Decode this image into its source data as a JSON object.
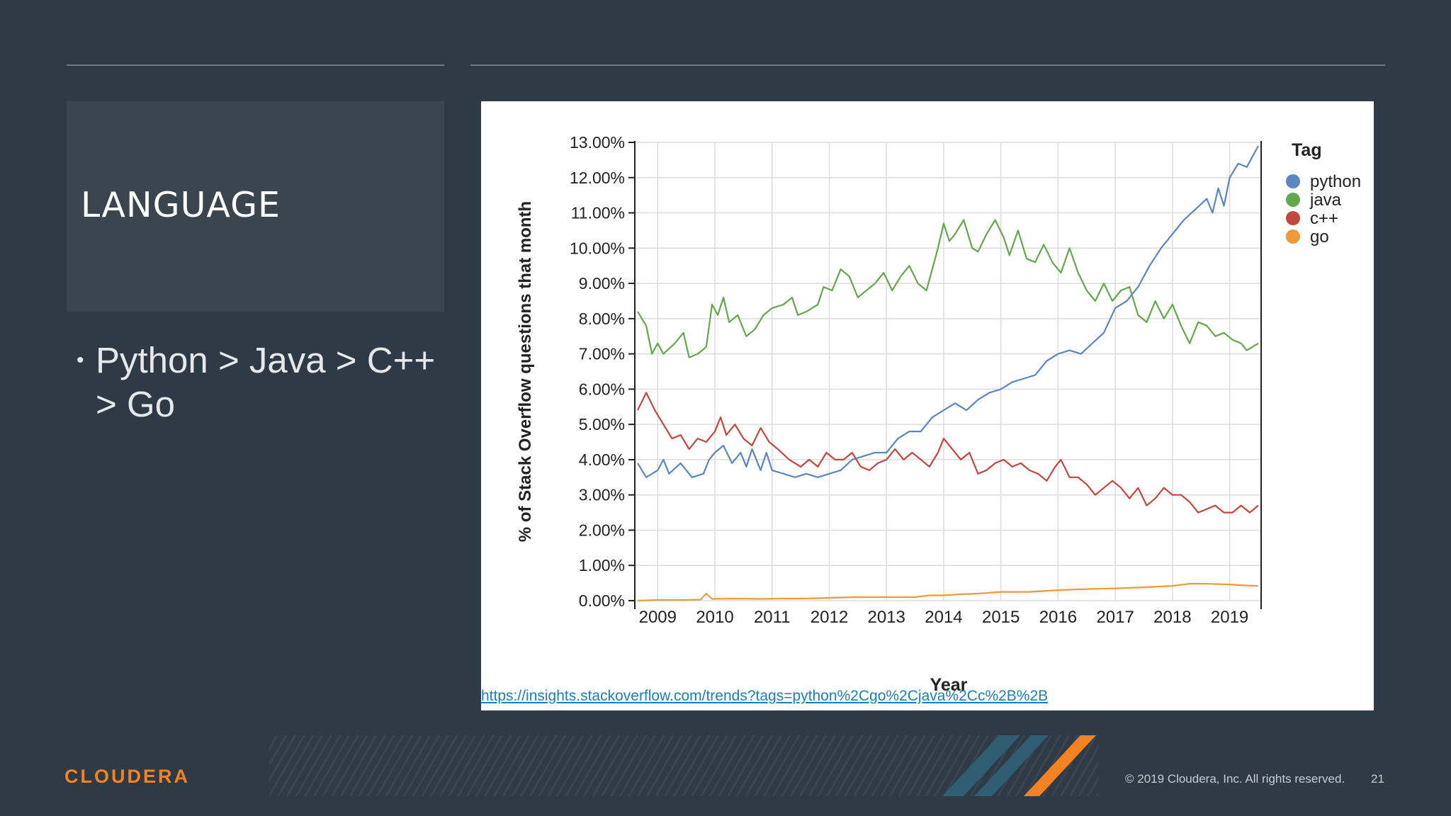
{
  "slide": {
    "title": "LANGUAGE",
    "bullet_symbol": "•",
    "bullet_text": "Python > Java > C++ > Go",
    "source_link": "https://insights.stackoverflow.com/trends?tags=python%2Cgo%2Cjava%2Cc%2B%2B",
    "copyright": "© 2019 Cloudera, Inc. All rights reserved.",
    "page_number": "21",
    "logo_text": "CLOUDERA"
  },
  "colors": {
    "background": "#2e3a45",
    "title_box": "#3a454f",
    "brand_orange": "#f58220",
    "stripe_teal": "#2f5e72",
    "python": "#5a86c4",
    "java": "#63a84a",
    "cpp": "#c4473d",
    "go": "#ec9a3a"
  },
  "chart_data": {
    "type": "line",
    "xlabel": "Year",
    "ylabel": "% of Stack Overflow questions that month",
    "xlim": [
      2008.6,
      2019.55
    ],
    "ylim": [
      0,
      13
    ],
    "x_ticks": [
      2009,
      2010,
      2011,
      2012,
      2013,
      2014,
      2015,
      2016,
      2017,
      2018,
      2019
    ],
    "y_ticks": [
      0,
      1,
      2,
      3,
      4,
      5,
      6,
      7,
      8,
      9,
      10,
      11,
      12,
      13
    ],
    "y_tick_labels": [
      "0.00%",
      "1.00%",
      "2.00%",
      "3.00%",
      "4.00%",
      "5.00%",
      "6.00%",
      "7.00%",
      "8.00%",
      "9.00%",
      "10.00%",
      "11.00%",
      "12.00%",
      "13.00%"
    ],
    "grid": true,
    "legend_title": "Tag",
    "legend_position": "top-right",
    "series": [
      {
        "name": "python",
        "color": "#5a86c4",
        "points": [
          [
            2008.65,
            3.9
          ],
          [
            2008.8,
            3.5
          ],
          [
            2009.0,
            3.7
          ],
          [
            2009.1,
            4.0
          ],
          [
            2009.2,
            3.6
          ],
          [
            2009.4,
            3.9
          ],
          [
            2009.6,
            3.5
          ],
          [
            2009.8,
            3.6
          ],
          [
            2009.9,
            4.0
          ],
          [
            2010.0,
            4.2
          ],
          [
            2010.15,
            4.4
          ],
          [
            2010.3,
            3.9
          ],
          [
            2010.45,
            4.2
          ],
          [
            2010.55,
            3.8
          ],
          [
            2010.65,
            4.3
          ],
          [
            2010.8,
            3.7
          ],
          [
            2010.9,
            4.2
          ],
          [
            2011.0,
            3.7
          ],
          [
            2011.2,
            3.6
          ],
          [
            2011.4,
            3.5
          ],
          [
            2011.6,
            3.6
          ],
          [
            2011.8,
            3.5
          ],
          [
            2012.0,
            3.6
          ],
          [
            2012.2,
            3.7
          ],
          [
            2012.4,
            4.0
          ],
          [
            2012.6,
            4.1
          ],
          [
            2012.8,
            4.2
          ],
          [
            2013.0,
            4.2
          ],
          [
            2013.2,
            4.6
          ],
          [
            2013.4,
            4.8
          ],
          [
            2013.6,
            4.8
          ],
          [
            2013.8,
            5.2
          ],
          [
            2014.0,
            5.4
          ],
          [
            2014.2,
            5.6
          ],
          [
            2014.4,
            5.4
          ],
          [
            2014.6,
            5.7
          ],
          [
            2014.8,
            5.9
          ],
          [
            2015.0,
            6.0
          ],
          [
            2015.2,
            6.2
          ],
          [
            2015.4,
            6.3
          ],
          [
            2015.6,
            6.4
          ],
          [
            2015.8,
            6.8
          ],
          [
            2016.0,
            7.0
          ],
          [
            2016.2,
            7.1
          ],
          [
            2016.4,
            7.0
          ],
          [
            2016.6,
            7.3
          ],
          [
            2016.8,
            7.6
          ],
          [
            2017.0,
            8.3
          ],
          [
            2017.2,
            8.5
          ],
          [
            2017.4,
            8.9
          ],
          [
            2017.6,
            9.5
          ],
          [
            2017.8,
            10.0
          ],
          [
            2018.0,
            10.4
          ],
          [
            2018.2,
            10.8
          ],
          [
            2018.4,
            11.1
          ],
          [
            2018.6,
            11.4
          ],
          [
            2018.7,
            11.0
          ],
          [
            2018.8,
            11.7
          ],
          [
            2018.9,
            11.2
          ],
          [
            2019.0,
            12.0
          ],
          [
            2019.15,
            12.4
          ],
          [
            2019.3,
            12.3
          ],
          [
            2019.5,
            12.9
          ]
        ]
      },
      {
        "name": "java",
        "color": "#63a84a",
        "points": [
          [
            2008.65,
            8.2
          ],
          [
            2008.8,
            7.8
          ],
          [
            2008.9,
            7.0
          ],
          [
            2009.0,
            7.3
          ],
          [
            2009.1,
            7.0
          ],
          [
            2009.3,
            7.3
          ],
          [
            2009.45,
            7.6
          ],
          [
            2009.55,
            6.9
          ],
          [
            2009.7,
            7.0
          ],
          [
            2009.85,
            7.2
          ],
          [
            2009.95,
            8.4
          ],
          [
            2010.05,
            8.1
          ],
          [
            2010.15,
            8.6
          ],
          [
            2010.25,
            7.9
          ],
          [
            2010.4,
            8.1
          ],
          [
            2010.55,
            7.5
          ],
          [
            2010.7,
            7.7
          ],
          [
            2010.85,
            8.1
          ],
          [
            2011.0,
            8.3
          ],
          [
            2011.2,
            8.4
          ],
          [
            2011.35,
            8.6
          ],
          [
            2011.45,
            8.1
          ],
          [
            2011.6,
            8.2
          ],
          [
            2011.8,
            8.4
          ],
          [
            2011.9,
            8.9
          ],
          [
            2012.05,
            8.8
          ],
          [
            2012.2,
            9.4
          ],
          [
            2012.35,
            9.2
          ],
          [
            2012.5,
            8.6
          ],
          [
            2012.65,
            8.8
          ],
          [
            2012.8,
            9.0
          ],
          [
            2012.95,
            9.3
          ],
          [
            2013.1,
            8.8
          ],
          [
            2013.25,
            9.2
          ],
          [
            2013.4,
            9.5
          ],
          [
            2013.55,
            9.0
          ],
          [
            2013.7,
            8.8
          ],
          [
            2013.8,
            9.4
          ],
          [
            2013.9,
            10.0
          ],
          [
            2014.0,
            10.7
          ],
          [
            2014.1,
            10.2
          ],
          [
            2014.2,
            10.4
          ],
          [
            2014.35,
            10.8
          ],
          [
            2014.5,
            10.0
          ],
          [
            2014.6,
            9.9
          ],
          [
            2014.75,
            10.4
          ],
          [
            2014.9,
            10.8
          ],
          [
            2015.05,
            10.3
          ],
          [
            2015.15,
            9.8
          ],
          [
            2015.3,
            10.5
          ],
          [
            2015.45,
            9.7
          ],
          [
            2015.6,
            9.6
          ],
          [
            2015.75,
            10.1
          ],
          [
            2015.9,
            9.6
          ],
          [
            2016.05,
            9.3
          ],
          [
            2016.2,
            10.0
          ],
          [
            2016.35,
            9.3
          ],
          [
            2016.5,
            8.8
          ],
          [
            2016.65,
            8.5
          ],
          [
            2016.8,
            9.0
          ],
          [
            2016.95,
            8.5
          ],
          [
            2017.1,
            8.8
          ],
          [
            2017.25,
            8.9
          ],
          [
            2017.4,
            8.1
          ],
          [
            2017.55,
            7.9
          ],
          [
            2017.7,
            8.5
          ],
          [
            2017.85,
            8.0
          ],
          [
            2018.0,
            8.4
          ],
          [
            2018.15,
            7.8
          ],
          [
            2018.3,
            7.3
          ],
          [
            2018.45,
            7.9
          ],
          [
            2018.6,
            7.8
          ],
          [
            2018.75,
            7.5
          ],
          [
            2018.9,
            7.6
          ],
          [
            2019.05,
            7.4
          ],
          [
            2019.2,
            7.3
          ],
          [
            2019.3,
            7.1
          ],
          [
            2019.5,
            7.3
          ]
        ]
      },
      {
        "name": "c++",
        "color": "#c4473d",
        "points": [
          [
            2008.65,
            5.4
          ],
          [
            2008.8,
            5.9
          ],
          [
            2008.95,
            5.4
          ],
          [
            2009.1,
            5.0
          ],
          [
            2009.25,
            4.6
          ],
          [
            2009.4,
            4.7
          ],
          [
            2009.55,
            4.3
          ],
          [
            2009.7,
            4.6
          ],
          [
            2009.85,
            4.5
          ],
          [
            2010.0,
            4.8
          ],
          [
            2010.1,
            5.2
          ],
          [
            2010.2,
            4.7
          ],
          [
            2010.35,
            5.0
          ],
          [
            2010.5,
            4.6
          ],
          [
            2010.65,
            4.4
          ],
          [
            2010.8,
            4.9
          ],
          [
            2010.95,
            4.5
          ],
          [
            2011.1,
            4.3
          ],
          [
            2011.3,
            4.0
          ],
          [
            2011.5,
            3.8
          ],
          [
            2011.65,
            4.0
          ],
          [
            2011.8,
            3.8
          ],
          [
            2011.95,
            4.2
          ],
          [
            2012.1,
            4.0
          ],
          [
            2012.25,
            4.0
          ],
          [
            2012.4,
            4.2
          ],
          [
            2012.55,
            3.8
          ],
          [
            2012.7,
            3.7
          ],
          [
            2012.85,
            3.9
          ],
          [
            2013.0,
            4.0
          ],
          [
            2013.15,
            4.3
          ],
          [
            2013.3,
            4.0
          ],
          [
            2013.45,
            4.2
          ],
          [
            2013.6,
            4.0
          ],
          [
            2013.75,
            3.8
          ],
          [
            2013.9,
            4.2
          ],
          [
            2014.0,
            4.6
          ],
          [
            2014.15,
            4.3
          ],
          [
            2014.3,
            4.0
          ],
          [
            2014.45,
            4.2
          ],
          [
            2014.6,
            3.6
          ],
          [
            2014.75,
            3.7
          ],
          [
            2014.9,
            3.9
          ],
          [
            2015.05,
            4.0
          ],
          [
            2015.2,
            3.8
          ],
          [
            2015.35,
            3.9
          ],
          [
            2015.5,
            3.7
          ],
          [
            2015.65,
            3.6
          ],
          [
            2015.8,
            3.4
          ],
          [
            2015.95,
            3.8
          ],
          [
            2016.05,
            4.0
          ],
          [
            2016.2,
            3.5
          ],
          [
            2016.35,
            3.5
          ],
          [
            2016.5,
            3.3
          ],
          [
            2016.65,
            3.0
          ],
          [
            2016.8,
            3.2
          ],
          [
            2016.95,
            3.4
          ],
          [
            2017.1,
            3.2
          ],
          [
            2017.25,
            2.9
          ],
          [
            2017.4,
            3.2
          ],
          [
            2017.55,
            2.7
          ],
          [
            2017.7,
            2.9
          ],
          [
            2017.85,
            3.2
          ],
          [
            2018.0,
            3.0
          ],
          [
            2018.15,
            3.0
          ],
          [
            2018.3,
            2.8
          ],
          [
            2018.45,
            2.5
          ],
          [
            2018.6,
            2.6
          ],
          [
            2018.75,
            2.7
          ],
          [
            2018.9,
            2.5
          ],
          [
            2019.05,
            2.5
          ],
          [
            2019.2,
            2.7
          ],
          [
            2019.35,
            2.5
          ],
          [
            2019.5,
            2.7
          ]
        ]
      },
      {
        "name": "go",
        "color": "#ec9a3a",
        "points": [
          [
            2008.65,
            0.0
          ],
          [
            2009.0,
            0.02
          ],
          [
            2009.5,
            0.02
          ],
          [
            2009.75,
            0.03
          ],
          [
            2009.85,
            0.2
          ],
          [
            2009.95,
            0.05
          ],
          [
            2010.3,
            0.06
          ],
          [
            2010.8,
            0.05
          ],
          [
            2011.2,
            0.06
          ],
          [
            2011.6,
            0.06
          ],
          [
            2012.0,
            0.08
          ],
          [
            2012.5,
            0.1
          ],
          [
            2013.0,
            0.1
          ],
          [
            2013.5,
            0.1
          ],
          [
            2013.75,
            0.15
          ],
          [
            2014.0,
            0.15
          ],
          [
            2014.3,
            0.18
          ],
          [
            2014.6,
            0.2
          ],
          [
            2015.0,
            0.25
          ],
          [
            2015.5,
            0.25
          ],
          [
            2016.0,
            0.3
          ],
          [
            2016.5,
            0.33
          ],
          [
            2017.0,
            0.35
          ],
          [
            2017.5,
            0.38
          ],
          [
            2018.0,
            0.42
          ],
          [
            2018.3,
            0.48
          ],
          [
            2018.6,
            0.48
          ],
          [
            2019.0,
            0.46
          ],
          [
            2019.3,
            0.43
          ],
          [
            2019.5,
            0.42
          ]
        ]
      }
    ]
  }
}
